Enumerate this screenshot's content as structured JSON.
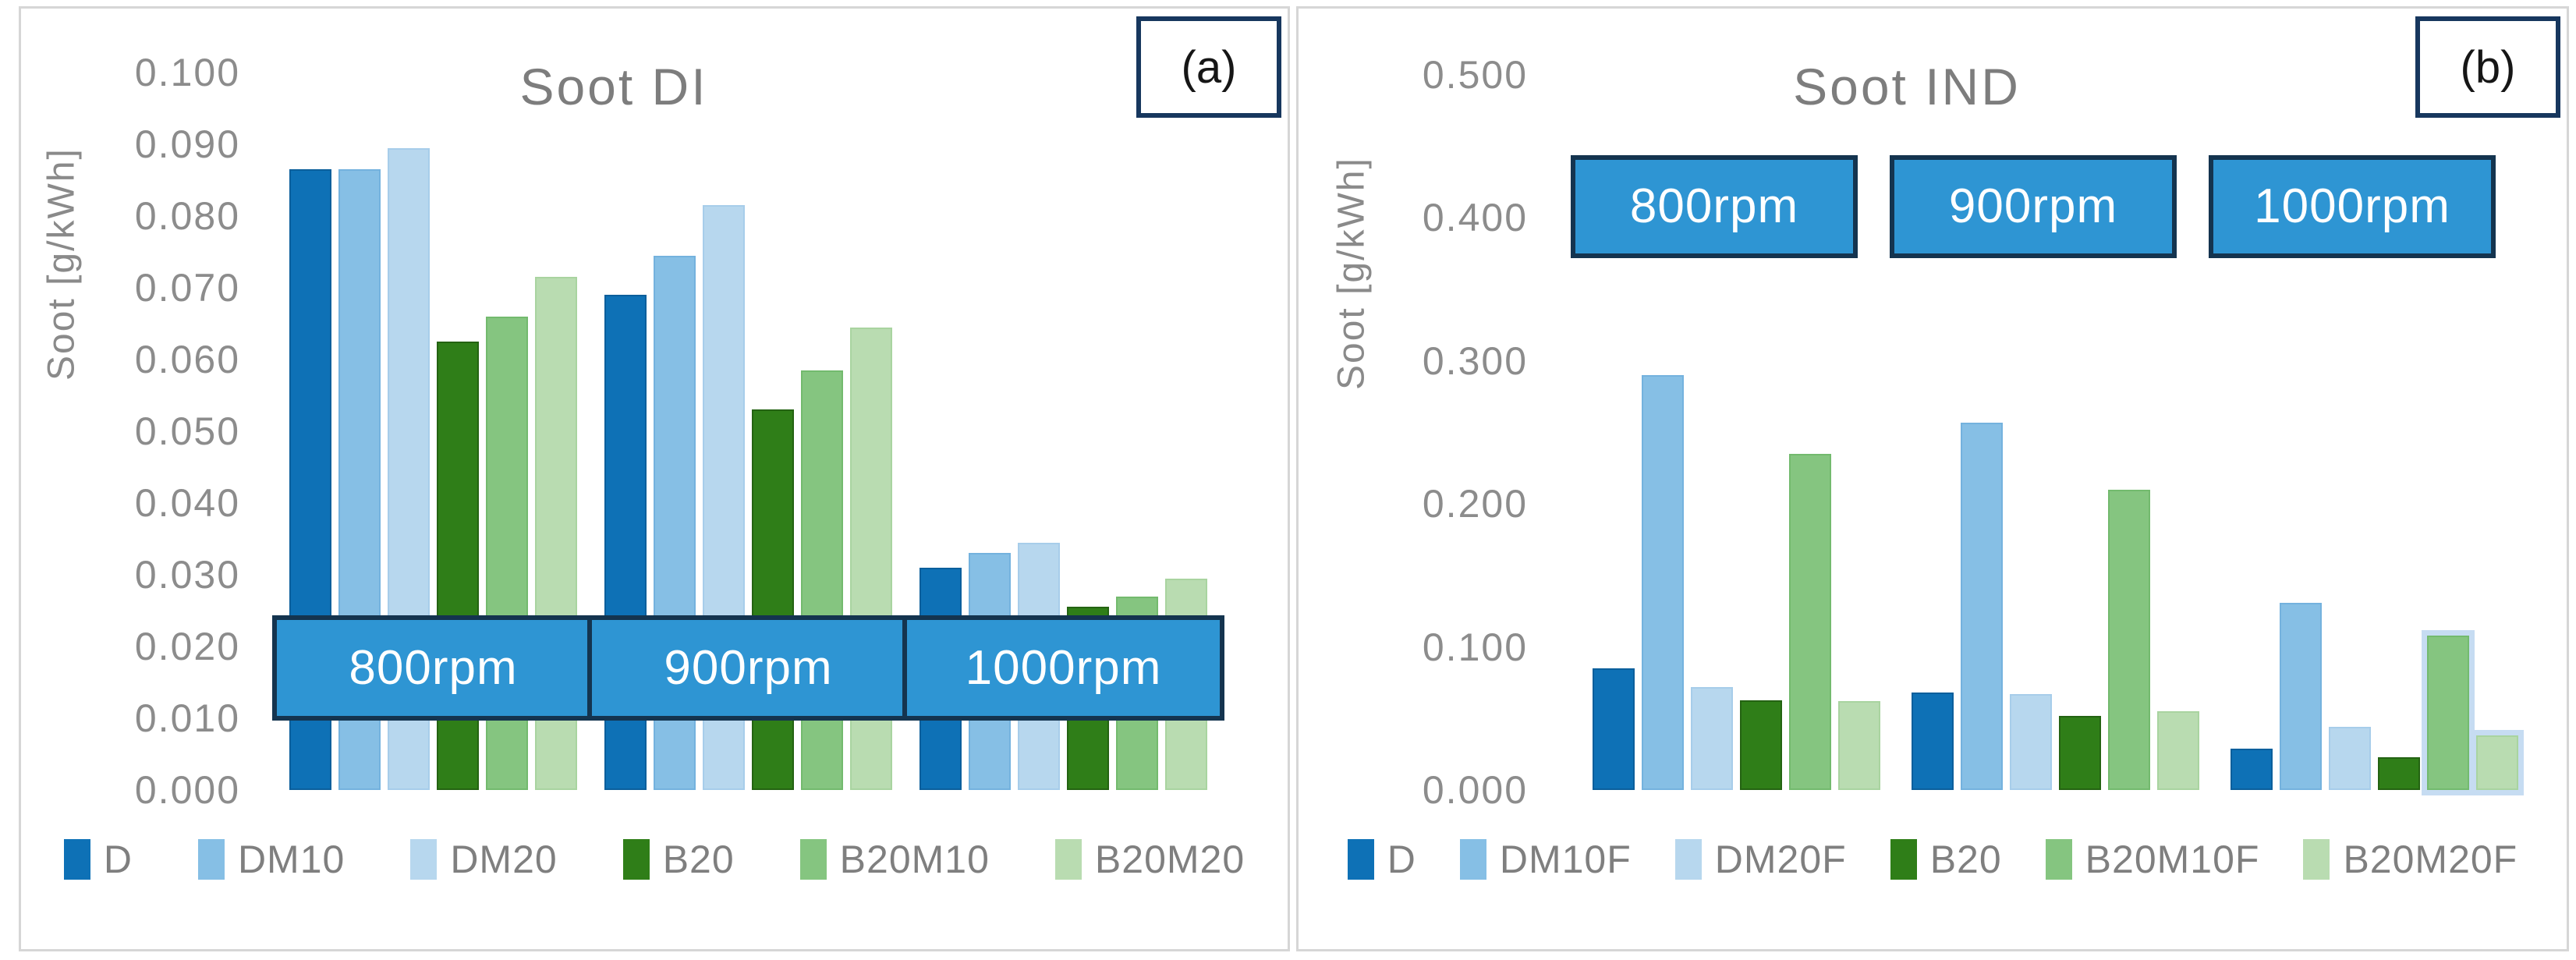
{
  "colors": {
    "panel_border": "#d6d6d6",
    "axis_text": "#8c8c8c",
    "title_text": "#7d7d7d",
    "legend_text": "#7f7f7f",
    "rpm_box_fill": "#2e95d3",
    "rpm_box_border": "#14344f",
    "rpm_box_text": "#ffffff",
    "corner_box_border": "#17375e",
    "halo": "#c6dcf2"
  },
  "palette": [
    {
      "fill": "#0e71b6",
      "edge": "#0b5f9c"
    },
    {
      "fill": "#86bfe5",
      "edge": "#74b2de"
    },
    {
      "fill": "#b7d7ee",
      "edge": "#a7cdea"
    },
    {
      "fill": "#2f7e18",
      "edge": "#246312"
    },
    {
      "fill": "#85c580",
      "edge": "#73ba6e"
    },
    {
      "fill": "#b9dcb1",
      "edge": "#a9d4a0"
    }
  ],
  "chart_data": [
    {
      "type": "bar",
      "corner_label": "(a)",
      "title": "Soot DI",
      "ylabel": "Soot [g/kWh]",
      "xlabel": "",
      "ylim": [
        0,
        0.1
      ],
      "grid": false,
      "legend_position": "bottom",
      "y_ticks": [
        "0.100",
        "0.090",
        "0.080",
        "0.070",
        "0.060",
        "0.050",
        "0.040",
        "0.030",
        "0.020",
        "0.010",
        "0.000"
      ],
      "categories": [
        "800rpm",
        "900rpm",
        "1000rpm"
      ],
      "series": [
        {
          "name": "D",
          "values": [
            0.0865,
            0.069,
            0.031
          ]
        },
        {
          "name": "DM10",
          "values": [
            0.0865,
            0.0745,
            0.033
          ]
        },
        {
          "name": "DM20",
          "values": [
            0.0895,
            0.0815,
            0.0345
          ]
        },
        {
          "name": "B20",
          "values": [
            0.0625,
            0.053,
            0.0255
          ]
        },
        {
          "name": "B20M10",
          "values": [
            0.066,
            0.0585,
            0.027
          ]
        },
        {
          "name": "B20M20",
          "values": [
            0.0715,
            0.0645,
            0.0295
          ]
        }
      ],
      "group_label_band": {
        "top_value": 0.0243,
        "bottom_value": 0.0097
      },
      "halo_bars": []
    },
    {
      "type": "bar",
      "corner_label": "(b)",
      "title": "Soot IND",
      "ylabel": "Soot [g/kWh]",
      "xlabel": "",
      "ylim": [
        0,
        0.5
      ],
      "grid": false,
      "legend_position": "bottom",
      "y_ticks": [
        "0.500",
        "0.400",
        "0.300",
        "0.200",
        "0.100",
        "0.000"
      ],
      "categories": [
        "800rpm",
        "900rpm",
        "1000rpm"
      ],
      "series": [
        {
          "name": "D",
          "values": [
            0.085,
            0.068,
            0.029
          ]
        },
        {
          "name": "DM10F",
          "values": [
            0.29,
            0.257,
            0.131
          ]
        },
        {
          "name": "DM20F",
          "values": [
            0.072,
            0.067,
            0.044
          ]
        },
        {
          "name": "B20",
          "values": [
            0.0625,
            0.052,
            0.023
          ]
        },
        {
          "name": "B20M10F",
          "values": [
            0.235,
            0.21,
            0.108
          ]
        },
        {
          "name": "B20M20F",
          "values": [
            0.062,
            0.055,
            0.038
          ]
        }
      ],
      "group_label_band": {
        "top_value": 0.444,
        "bottom_value": 0.372
      },
      "halo_bars": [
        [
          2,
          4
        ],
        [
          2,
          5
        ]
      ]
    }
  ]
}
